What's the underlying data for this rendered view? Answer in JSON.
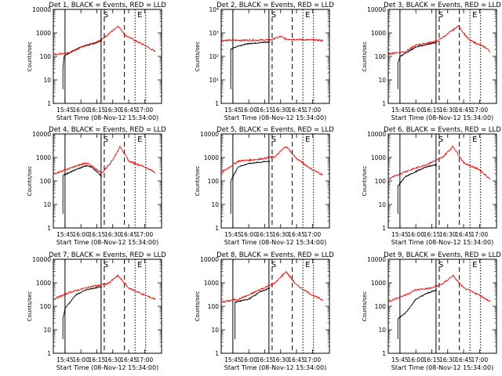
{
  "figure": {
    "xlabel": "Start Time (08-Nov-12 15:34:00)",
    "ylabel": "Counts/sec",
    "x_ticks": [
      "15:45",
      "16:00",
      "16:15",
      "16:30",
      "16:45",
      "17:00"
    ],
    "y_ticks_standard": [
      "1",
      "10",
      "100",
      "1000",
      "10000"
    ],
    "y_ticks_det2": [
      "1",
      "10¹",
      "10²",
      "10³",
      "10⁴"
    ],
    "markers": {
      "start": "S",
      "end": "E"
    },
    "colors": {
      "events": "#000000",
      "lld": "#ff0000",
      "axes": "#000000",
      "background": "#ffffff"
    }
  },
  "chart_data": [
    {
      "type": "line",
      "title": "Det 1, BLACK = Events, RED = LLD",
      "xlabel": "Start Time (08-Nov-12 15:34:00)",
      "ylabel": "Counts/sec",
      "x_range": [
        "15:34",
        "17:16"
      ],
      "ylim": [
        1,
        10000
      ],
      "y_scale": "log",
      "series": [
        {
          "name": "Events",
          "color": "black",
          "points": [
            [
              "15:43",
              30
            ],
            [
              "15:44",
              100
            ],
            [
              "15:50",
              150
            ],
            [
              "16:00",
              250
            ],
            [
              "16:12",
              350
            ],
            [
              "16:20",
              480
            ]
          ]
        },
        {
          "name": "LLD",
          "color": "red",
          "points": [
            [
              "15:34",
              120
            ],
            [
              "15:50",
              150
            ],
            [
              "16:00",
              250
            ],
            [
              "16:15",
              400
            ],
            [
              "16:25",
              800
            ],
            [
              "16:35",
              2000
            ],
            [
              "16:42",
              800
            ],
            [
              "16:50",
              500
            ],
            [
              "17:00",
              300
            ],
            [
              "17:10",
              160
            ]
          ]
        }
      ]
    },
    {
      "type": "line",
      "title": "Det 2, BLACK = Events, RED = LLD",
      "xlabel": "Start Time (08-Nov-12 15:34:00)",
      "ylabel": "Counts/sec",
      "x_range": [
        "15:34",
        "17:16"
      ],
      "ylim": [
        1,
        10000
      ],
      "y_scale": "log",
      "series": [
        {
          "name": "Events",
          "color": "black",
          "points": [
            [
              "15:43",
              200
            ],
            [
              "15:50",
              280
            ],
            [
              "16:00",
              350
            ],
            [
              "16:15",
              400
            ],
            [
              "16:20",
              420
            ]
          ]
        },
        {
          "name": "LLD",
          "color": "red",
          "points": [
            [
              "15:34",
              480
            ],
            [
              "16:00",
              490
            ],
            [
              "16:20",
              500
            ],
            [
              "16:30",
              700
            ],
            [
              "16:35",
              550
            ],
            [
              "17:00",
              500
            ],
            [
              "17:10",
              480
            ]
          ]
        }
      ]
    },
    {
      "type": "line",
      "title": "Det 3, BLACK = Events, RED = LLD",
      "xlabel": "Start Time (08-Nov-12 15:34:00)",
      "ylabel": "Counts/sec",
      "x_range": [
        "15:34",
        "17:16"
      ],
      "ylim": [
        1,
        10000
      ],
      "y_scale": "log",
      "series": [
        {
          "name": "Events",
          "color": "black",
          "points": [
            [
              "15:43",
              50
            ],
            [
              "15:45",
              100
            ],
            [
              "16:00",
              250
            ],
            [
              "16:20",
              400
            ]
          ]
        },
        {
          "name": "LLD",
          "color": "red",
          "points": [
            [
              "15:34",
              130
            ],
            [
              "15:50",
              160
            ],
            [
              "16:00",
              300
            ],
            [
              "16:20",
              450
            ],
            [
              "16:30",
              900
            ],
            [
              "16:40",
              2000
            ],
            [
              "16:50",
              500
            ],
            [
              "17:05",
              250
            ],
            [
              "17:10",
              160
            ]
          ]
        }
      ]
    },
    {
      "type": "line",
      "title": "Det 4, BLACK = Events, RED = LLD",
      "xlabel": "Start Time (08-Nov-12 15:34:00)",
      "ylabel": "Counts/sec",
      "x_range": [
        "15:34",
        "17:16"
      ],
      "ylim": [
        1,
        10000
      ],
      "y_scale": "log",
      "series": [
        {
          "name": "Events",
          "color": "black",
          "points": [
            [
              "15:43",
              170
            ],
            [
              "15:55",
              300
            ],
            [
              "16:05",
              450
            ],
            [
              "16:10",
              400
            ],
            [
              "16:20",
              150
            ]
          ]
        },
        {
          "name": "LLD",
          "color": "red",
          "points": [
            [
              "15:34",
              200
            ],
            [
              "15:50",
              350
            ],
            [
              "16:05",
              600
            ],
            [
              "16:20",
              220
            ],
            [
              "16:30",
              800
            ],
            [
              "16:37",
              3000
            ],
            [
              "16:45",
              700
            ],
            [
              "17:00",
              400
            ],
            [
              "17:10",
              230
            ]
          ]
        }
      ]
    },
    {
      "type": "line",
      "title": "Det 5, BLACK = Events, RED = LLD",
      "xlabel": "Start Time (08-Nov-12 15:34:00)",
      "ylabel": "Counts/sec",
      "x_range": [
        "15:34",
        "17:16"
      ],
      "ylim": [
        1,
        10000
      ],
      "y_scale": "log",
      "series": [
        {
          "name": "Events",
          "color": "black",
          "points": [
            [
              "15:43",
              100
            ],
            [
              "15:50",
              400
            ],
            [
              "16:00",
              550
            ],
            [
              "16:20",
              700
            ]
          ]
        },
        {
          "name": "LLD",
          "color": "red",
          "points": [
            [
              "15:34",
              220
            ],
            [
              "15:50",
              700
            ],
            [
              "16:10",
              850
            ],
            [
              "16:25",
              1100
            ],
            [
              "16:35",
              3000
            ],
            [
              "16:45",
              900
            ],
            [
              "17:00",
              300
            ],
            [
              "17:10",
              180
            ]
          ]
        }
      ]
    },
    {
      "type": "line",
      "title": "Det 6, BLACK = Events, RED = LLD",
      "xlabel": "Start Time (08-Nov-12 15:34:00)",
      "ylabel": "Counts/sec",
      "x_range": [
        "15:34",
        "17:16"
      ],
      "ylim": [
        1,
        10000
      ],
      "y_scale": "log",
      "series": [
        {
          "name": "Events",
          "color": "black",
          "points": [
            [
              "15:43",
              60
            ],
            [
              "15:50",
              150
            ],
            [
              "16:00",
              250
            ],
            [
              "16:10",
              400
            ],
            [
              "16:20",
              500
            ]
          ]
        },
        {
          "name": "LLD",
          "color": "red",
          "points": [
            [
              "15:34",
              120
            ],
            [
              "15:50",
              250
            ],
            [
              "16:10",
              500
            ],
            [
              "16:25",
              1000
            ],
            [
              "16:35",
              3000
            ],
            [
              "16:45",
              600
            ],
            [
              "17:00",
              300
            ],
            [
              "17:10",
              120
            ]
          ]
        }
      ]
    },
    {
      "type": "line",
      "title": "Det 7, BLACK = Events, RED = LLD",
      "xlabel": "Start Time (08-Nov-12 15:34:00)",
      "ylabel": "Counts/sec",
      "x_range": [
        "15:34",
        "17:16"
      ],
      "ylim": [
        1,
        10000
      ],
      "y_scale": "log",
      "series": [
        {
          "name": "Events",
          "color": "black",
          "points": [
            [
              "15:43",
              30
            ],
            [
              "15:45",
              80
            ],
            [
              "15:55",
              300
            ],
            [
              "16:05",
              500
            ],
            [
              "16:20",
              700
            ]
          ]
        },
        {
          "name": "LLD",
          "color": "red",
          "points": [
            [
              "15:34",
              200
            ],
            [
              "15:50",
              400
            ],
            [
              "16:10",
              700
            ],
            [
              "16:25",
              900
            ],
            [
              "16:35",
              2000
            ],
            [
              "16:45",
              600
            ],
            [
              "17:00",
              300
            ],
            [
              "17:10",
              200
            ]
          ]
        }
      ]
    },
    {
      "type": "line",
      "title": "Det 8, BLACK = Events, RED = LLD",
      "xlabel": "Start Time (08-Nov-12 15:34:00)",
      "ylabel": "Counts/sec",
      "x_range": [
        "15:34",
        "17:16"
      ],
      "ylim": [
        1,
        10000
      ],
      "y_scale": "log",
      "series": [
        {
          "name": "Events",
          "color": "black",
          "points": [
            [
              "15:47",
              150
            ],
            [
              "16:00",
              200
            ],
            [
              "16:10",
              400
            ],
            [
              "16:20",
              600
            ]
          ]
        },
        {
          "name": "LLD",
          "color": "red",
          "points": [
            [
              "15:34",
              150
            ],
            [
              "15:50",
              200
            ],
            [
              "16:00",
              300
            ],
            [
              "16:10",
              500
            ],
            [
              "16:25",
              1000
            ],
            [
              "16:35",
              3000
            ],
            [
              "16:45",
              800
            ],
            [
              "17:00",
              300
            ],
            [
              "17:10",
              180
            ]
          ]
        }
      ]
    },
    {
      "type": "line",
      "title": "Det 9, BLACK = Events, RED = LLD",
      "xlabel": "Start Time (08-Nov-12 15:34:00)",
      "ylabel": "Counts/sec",
      "x_range": [
        "15:34",
        "17:16"
      ],
      "ylim": [
        1,
        10000
      ],
      "y_scale": "log",
      "series": [
        {
          "name": "Events",
          "color": "black",
          "points": [
            [
              "15:43",
              30
            ],
            [
              "15:50",
              50
            ],
            [
              "16:00",
              200
            ],
            [
              "16:10",
              350
            ],
            [
              "16:20",
              500
            ]
          ]
        },
        {
          "name": "LLD",
          "color": "red",
          "points": [
            [
              "15:34",
              160
            ],
            [
              "15:50",
              300
            ],
            [
              "16:00",
              500
            ],
            [
              "16:15",
              600
            ],
            [
              "16:25",
              900
            ],
            [
              "16:35",
              2000
            ],
            [
              "16:45",
              600
            ],
            [
              "17:00",
              300
            ],
            [
              "17:10",
              160
            ]
          ]
        }
      ]
    }
  ]
}
